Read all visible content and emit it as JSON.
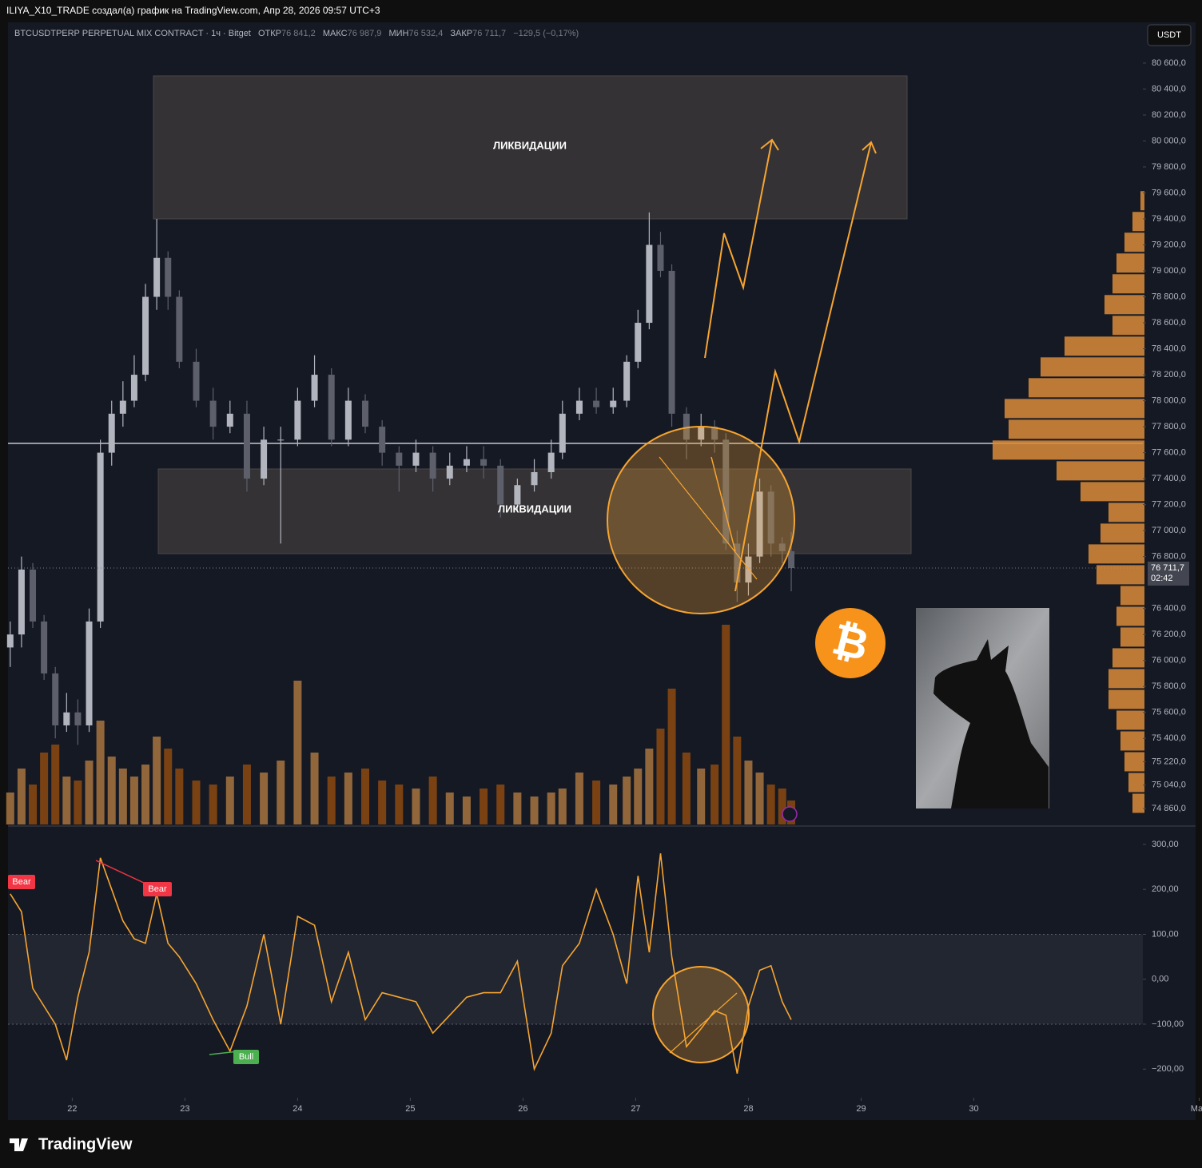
{
  "header": {
    "attribution": "ILIYA_X10_TRADE создал(а) график на TradingView.com, Апр 28, 2026 09:57 UTC+3"
  },
  "symbol": {
    "name": "BTCUSDTPERP PERPETUAL MIX CONTRACT · 1ч · Bitget",
    "open_label": "ОТКР",
    "open": "76 841,2",
    "high_label": "МАКС",
    "high": "76 987,9",
    "low_label": "МИН",
    "low": "76 532,4",
    "close_label": "ЗАКР",
    "close": "76 711,7",
    "change": "−129,5 (−0,17%)"
  },
  "currency": "USDT",
  "bitcoin_symbol": "₿",
  "brand": "TradingView",
  "chart_data": [
    {
      "type": "candlestick",
      "xlim": [
        21.43,
        31.5
      ],
      "ylim": [
        74737,
        80901
      ],
      "x": [
        21.45,
        21.55,
        21.65,
        21.75,
        21.85,
        21.95,
        22.05,
        22.15,
        22.25,
        22.35,
        22.45,
        22.55,
        22.65,
        22.75,
        22.85,
        22.95,
        23.1,
        23.25,
        23.4,
        23.55,
        23.7,
        23.85,
        24.0,
        24.15,
        24.3,
        24.45,
        24.6,
        24.75,
        24.9,
        25.05,
        25.2,
        25.35,
        25.5,
        25.65,
        25.8,
        25.95,
        26.1,
        26.25,
        26.35,
        26.5,
        26.65,
        26.8,
        26.92,
        27.02,
        27.12,
        27.22,
        27.32,
        27.45,
        27.58,
        27.7,
        27.8,
        27.9,
        28.0,
        28.1,
        28.2,
        28.3,
        28.38
      ],
      "open": [
        76100,
        76200,
        76700,
        76300,
        75900,
        75500,
        75600,
        75500,
        76300,
        77600,
        77900,
        78000,
        78200,
        78800,
        79100,
        78800,
        78300,
        78000,
        77800,
        77900,
        77400,
        77700,
        77700,
        78000,
        78200,
        77700,
        78000,
        77800,
        77600,
        77500,
        77600,
        77400,
        77500,
        77550,
        77500,
        77200,
        77350,
        77450,
        77600,
        77900,
        78000,
        77950,
        78000,
        78300,
        78600,
        79200,
        79000,
        77900,
        77700,
        77800,
        77700,
        76900,
        76600,
        76800,
        77300,
        76900,
        76841.2
      ],
      "high": [
        76300,
        76800,
        76750,
        76350,
        75950,
        75750,
        75700,
        76400,
        77700,
        78000,
        78150,
        78350,
        78900,
        79400,
        79150,
        78850,
        78400,
        78100,
        78000,
        78000,
        77800,
        77800,
        78100,
        78350,
        78250,
        78100,
        78050,
        77850,
        77650,
        77700,
        77650,
        77600,
        77650,
        77650,
        77550,
        77400,
        77550,
        77700,
        78000,
        78100,
        78100,
        78100,
        78350,
        78700,
        79450,
        79300,
        79050,
        77950,
        77900,
        77850,
        77750,
        77000,
        76900,
        77400,
        77350,
        76950,
        76987.9
      ],
      "low": [
        75950,
        76100,
        76250,
        75850,
        75400,
        75450,
        75350,
        75450,
        76250,
        77500,
        77800,
        77950,
        78150,
        78700,
        78700,
        78250,
        77950,
        77700,
        77750,
        77300,
        77350,
        76900,
        77650,
        77950,
        77650,
        77650,
        77750,
        77500,
        77300,
        77450,
        77300,
        77350,
        77450,
        77400,
        77100,
        77150,
        77300,
        77400,
        77550,
        77850,
        77900,
        77900,
        77950,
        78250,
        78550,
        78950,
        77800,
        77550,
        77650,
        77600,
        76850,
        76450,
        76500,
        76750,
        76800,
        76750,
        76532.4
      ],
      "close": [
        76200,
        76700,
        76300,
        75900,
        75500,
        75600,
        75500,
        76300,
        77600,
        77900,
        78000,
        78200,
        78800,
        79100,
        78800,
        78300,
        78000,
        77800,
        77900,
        77400,
        77700,
        77700,
        78000,
        78200,
        77700,
        78000,
        77800,
        77600,
        77500,
        77600,
        77400,
        77500,
        77550,
        77500,
        77200,
        77350,
        77450,
        77600,
        77900,
        78000,
        77950,
        78000,
        78300,
        78600,
        79200,
        79000,
        77900,
        77700,
        77800,
        77700,
        76900,
        76600,
        76800,
        77300,
        76900,
        76841.2,
        76711.7
      ],
      "volume": [
        40,
        70,
        50,
        90,
        100,
        60,
        55,
        80,
        130,
        85,
        70,
        60,
        75,
        110,
        95,
        70,
        55,
        50,
        60,
        75,
        65,
        80,
        180,
        90,
        60,
        65,
        70,
        55,
        50,
        45,
        60,
        40,
        35,
        45,
        50,
        40,
        35,
        40,
        45,
        65,
        55,
        50,
        60,
        70,
        95,
        120,
        170,
        90,
        70,
        75,
        250,
        110,
        80,
        65,
        50,
        45,
        30
      ],
      "up_color": "#b2b5be",
      "down_color": "#5d606b",
      "volume_up_color": "#a7743f",
      "volume_down_color": "#8c4a10",
      "yticks": [
        {
          "value": 74860,
          "label": "74 860,0"
        },
        {
          "value": 75040,
          "label": "75 040,0"
        },
        {
          "value": 75220,
          "label": "75 220,0"
        },
        {
          "value": 75400,
          "label": "75 400,0"
        },
        {
          "value": 75600,
          "label": "75 600,0"
        },
        {
          "value": 75800,
          "label": "75 800,0"
        },
        {
          "value": 76000,
          "label": "76 000,0"
        },
        {
          "value": 76200,
          "label": "76 200,0"
        },
        {
          "value": 76400,
          "label": "76 400,0"
        },
        {
          "value": 76800,
          "label": "76 800,0"
        },
        {
          "value": 77000,
          "label": "77 000,0"
        },
        {
          "value": 77200,
          "label": "77 200,0"
        },
        {
          "value": 77400,
          "label": "77 400,0"
        },
        {
          "value": 77600,
          "label": "77 600,0"
        },
        {
          "value": 77800,
          "label": "77 800,0"
        },
        {
          "value": 78000,
          "label": "78 000,0"
        },
        {
          "value": 78200,
          "label": "78 200,0"
        },
        {
          "value": 78400,
          "label": "78 400,0"
        },
        {
          "value": 78600,
          "label": "78 600,0"
        },
        {
          "value": 78800,
          "label": "78 800,0"
        },
        {
          "value": 79000,
          "label": "79 000,0"
        },
        {
          "value": 79200,
          "label": "79 200,0"
        },
        {
          "value": 79400,
          "label": "79 400,0"
        },
        {
          "value": 79600,
          "label": "79 600,0"
        },
        {
          "value": 79800,
          "label": "79 800,0"
        },
        {
          "value": 80000,
          "label": "80 000,0"
        },
        {
          "value": 80200,
          "label": "80 200,0"
        },
        {
          "value": 80400,
          "label": "80 400,0"
        },
        {
          "value": 80600,
          "label": "80 600,0"
        }
      ],
      "last_price": {
        "value": 76711.7,
        "label": "76 711,7"
      },
      "countdown": "02:42",
      "annotations": [
        "ЛИКВИДАЦИИ",
        "ЛИКВИДАЦИИ"
      ]
    },
    {
      "type": "line",
      "xlim": [
        21.43,
        31.5
      ],
      "ylim": [
        -260,
        339
      ],
      "x": [
        21.45,
        21.55,
        21.65,
        21.75,
        21.85,
        21.95,
        22.05,
        22.15,
        22.25,
        22.35,
        22.45,
        22.55,
        22.65,
        22.75,
        22.85,
        22.95,
        23.1,
        23.25,
        23.4,
        23.55,
        23.7,
        23.85,
        24.0,
        24.15,
        24.3,
        24.45,
        24.6,
        24.75,
        24.9,
        25.05,
        25.2,
        25.35,
        25.5,
        25.65,
        25.8,
        25.95,
        26.1,
        26.25,
        26.35,
        26.5,
        26.65,
        26.8,
        26.92,
        27.02,
        27.12,
        27.22,
        27.32,
        27.45,
        27.58,
        27.7,
        27.8,
        27.9,
        28.0,
        28.1,
        28.2,
        28.3,
        28.38
      ],
      "values": [
        190,
        150,
        -20,
        -60,
        -100,
        -180,
        -40,
        60,
        270,
        200,
        130,
        90,
        80,
        190,
        80,
        50,
        -10,
        -90,
        -160,
        -60,
        100,
        -100,
        140,
        120,
        -50,
        60,
        -90,
        -30,
        -40,
        -50,
        -120,
        -80,
        -40,
        -30,
        -30,
        40,
        -200,
        -120,
        30,
        80,
        200,
        100,
        -10,
        230,
        60,
        280,
        50,
        -150,
        -110,
        -70,
        -80,
        -210,
        -60,
        20,
        30,
        -50,
        -90
      ],
      "color": "#f7a531",
      "band": [
        -100,
        100
      ],
      "yticks": [
        {
          "value": -200,
          "label": "−200,00"
        },
        {
          "value": -100,
          "label": "−100,00"
        },
        {
          "value": 0,
          "label": "0,00"
        },
        {
          "value": 100,
          "label": "100,00"
        },
        {
          "value": 200,
          "label": "200,00"
        },
        {
          "value": 300,
          "label": "300,00"
        }
      ],
      "xticks": [
        22,
        23,
        24,
        25,
        26,
        27,
        28,
        29,
        30,
        {
          "value": 32,
          "label": "Май"
        }
      ],
      "divergence_labels": [
        "Bear",
        "Bear",
        "Bull"
      ]
    },
    {
      "type": "profile",
      "levels": [
        74900,
        75060,
        75220,
        75380,
        75540,
        75700,
        75860,
        76020,
        76180,
        76340,
        76500,
        76660,
        76820,
        76980,
        77140,
        77300,
        77460,
        77620,
        77780,
        77940,
        78100,
        78260,
        78420,
        78580,
        78740,
        78900,
        79060,
        79220,
        79380,
        79540
      ],
      "values": [
        15,
        20,
        25,
        30,
        35,
        45,
        45,
        40,
        30,
        35,
        30,
        60,
        70,
        55,
        45,
        80,
        110,
        190,
        170,
        175,
        145,
        130,
        100,
        40,
        50,
        40,
        35,
        25,
        15,
        5
      ],
      "color": "#d98c3a"
    }
  ]
}
